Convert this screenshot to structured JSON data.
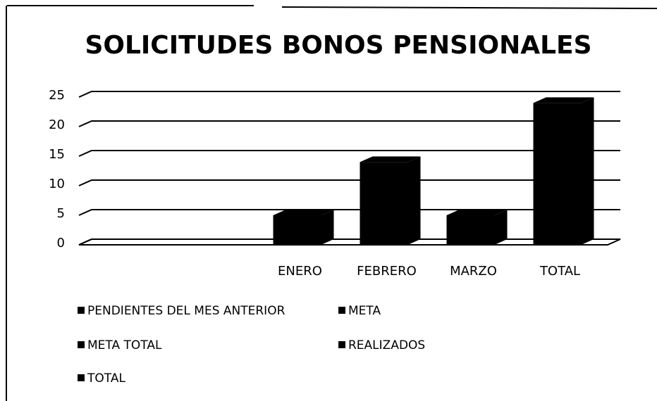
{
  "chart_data": {
    "type": "bar",
    "title": "SOLICITUDES BONOS PENSIONALES",
    "categories": [
      null,
      "ENERO",
      "FEBRERO",
      "MARZO",
      "TOTAL"
    ],
    "series": [
      {
        "name": "PENDIENTES DEL MES ANTERIOR",
        "color": "#000000",
        "values": [
          null,
          null,
          null,
          null,
          null
        ]
      },
      {
        "name": "META",
        "color": "#000000",
        "values": [
          null,
          null,
          null,
          null,
          null
        ]
      },
      {
        "name": "META TOTAL",
        "color": "#000000",
        "values": [
          null,
          null,
          null,
          null,
          null
        ]
      },
      {
        "name": "REALIZADOS",
        "color": "#000000",
        "values": [
          null,
          5,
          14,
          5,
          null
        ]
      },
      {
        "name": "TOTAL",
        "color": "#000000",
        "values": [
          null,
          null,
          null,
          null,
          24
        ]
      }
    ],
    "ylim": [
      0,
      25
    ],
    "yticks": [
      0,
      5,
      10,
      15,
      20,
      25
    ],
    "grid": true
  }
}
